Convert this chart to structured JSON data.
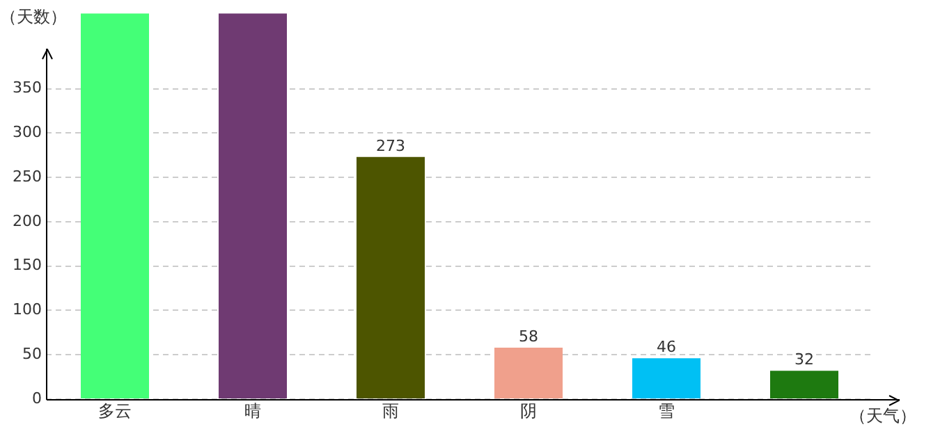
{
  "chart_data": {
    "type": "bar",
    "xlabel": "（天气）",
    "ylabel": "（天数）",
    "categories": [
      "多云",
      "晴",
      "雨",
      "阴",
      "雪",
      null
    ],
    "values": [
      435,
      435,
      273,
      58,
      46,
      32
    ],
    "value_labels": [
      null,
      null,
      "273",
      "58",
      "46",
      "32"
    ],
    "colors": [
      "#44ff77",
      "#6f3a72",
      "#4d5500",
      "#f0a08c",
      "#00c0f4",
      "#1e7a10"
    ],
    "ylim": [
      0,
      435
    ],
    "yticks": [
      0,
      50,
      100,
      150,
      200,
      250,
      300,
      350
    ],
    "grid": "y",
    "legend": false
  }
}
